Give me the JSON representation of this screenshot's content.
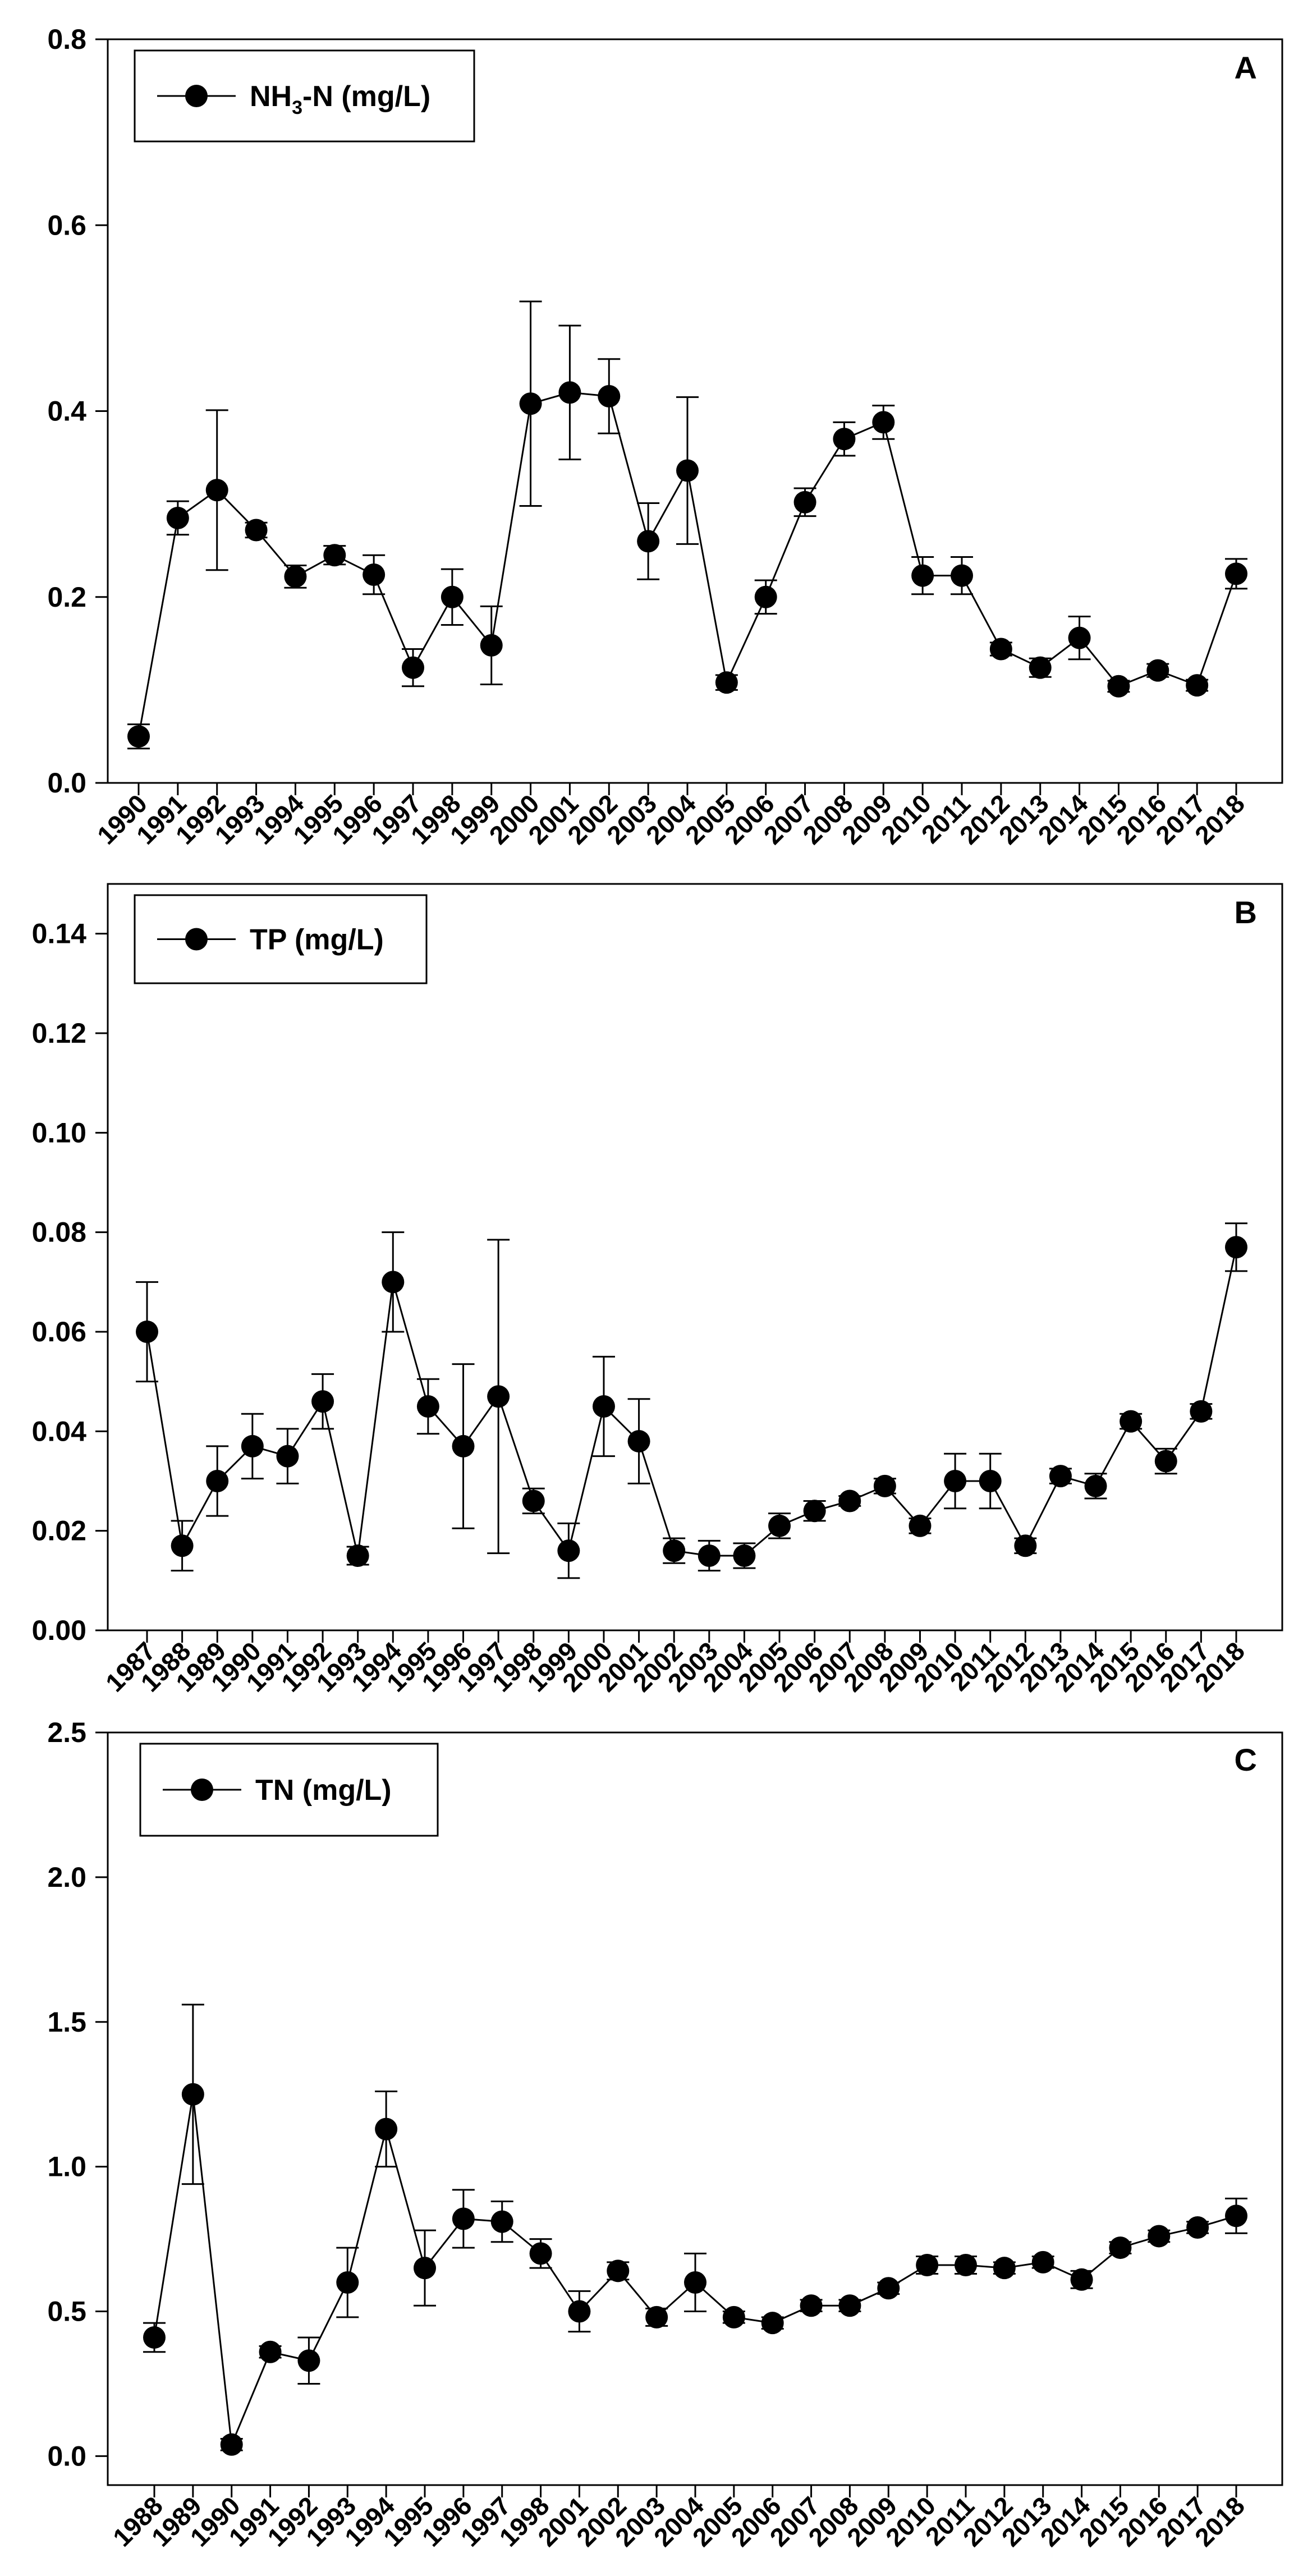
{
  "chart_data": [
    {
      "type": "line",
      "panel_label": "A",
      "legend": {
        "label": "NH",
        "sub": "3",
        "suffix": "-N (mg/L)",
        "placement": "top-left"
      },
      "ylim": [
        0,
        0.8
      ],
      "yticks": [
        0.0,
        0.2,
        0.4,
        0.6,
        0.8
      ],
      "ytick_labels": [
        "0.0",
        "0.2",
        "0.4",
        "0.6",
        "0.8"
      ],
      "categories": [
        "1990",
        "1991",
        "1992",
        "1993",
        "1994",
        "1995",
        "1996",
        "1997",
        "1998",
        "1999",
        "2000",
        "2001",
        "2002",
        "2003",
        "2004",
        "2005",
        "2006",
        "2007",
        "2008",
        "2009",
        "2010",
        "2011",
        "2012",
        "2013",
        "2014",
        "2015",
        "2016",
        "2017",
        "2018"
      ],
      "values": [
        0.05,
        0.285,
        0.315,
        0.272,
        0.222,
        0.245,
        0.224,
        0.124,
        0.2,
        0.148,
        0.408,
        0.42,
        0.416,
        0.26,
        0.336,
        0.108,
        0.2,
        0.302,
        0.37,
        0.388,
        0.223,
        0.223,
        0.144,
        0.124,
        0.156,
        0.104,
        0.121,
        0.105,
        0.225
      ],
      "errors": [
        0.013,
        0.018,
        0.086,
        0.008,
        0.012,
        0.01,
        0.021,
        0.02,
        0.03,
        0.042,
        0.11,
        0.072,
        0.04,
        0.041,
        0.079,
        0.008,
        0.018,
        0.015,
        0.018,
        0.018,
        0.02,
        0.02,
        0.007,
        0.01,
        0.023,
        0.006,
        0.007,
        0.006,
        0.016
      ],
      "xlabel": "",
      "ylabel": "",
      "grid": false
    },
    {
      "type": "line",
      "panel_label": "B",
      "legend": {
        "label": "TP (mg/L)",
        "sub": "",
        "suffix": "",
        "placement": "top-left"
      },
      "ylim": [
        0,
        0.15
      ],
      "yticks": [
        0.0,
        0.02,
        0.04,
        0.06,
        0.08,
        0.1,
        0.12,
        0.14
      ],
      "ytick_labels": [
        "0.00",
        "0.02",
        "0.04",
        "0.06",
        "0.08",
        "0.10",
        "0.12",
        "0.14"
      ],
      "categories": [
        "1987",
        "1988",
        "1989",
        "1990",
        "1991",
        "1992",
        "1993",
        "1994",
        "1995",
        "1996",
        "1997",
        "1998",
        "1999",
        "2000",
        "2001",
        "2002",
        "2003",
        "2004",
        "2005",
        "2006",
        "2007",
        "2008",
        "2009",
        "2010",
        "2011",
        "2012",
        "2013",
        "2014",
        "2015",
        "2016",
        "2017",
        "2018"
      ],
      "values": [
        0.06,
        0.017,
        0.03,
        0.037,
        0.035,
        0.046,
        0.015,
        0.07,
        0.045,
        0.037,
        0.047,
        0.026,
        0.016,
        0.045,
        0.038,
        0.016,
        0.015,
        0.015,
        0.021,
        0.024,
        0.026,
        0.029,
        0.021,
        0.03,
        0.03,
        0.017,
        0.031,
        0.029,
        0.042,
        0.034,
        0.044,
        0.077
      ],
      "errors": [
        0.01,
        0.005,
        0.007,
        0.0065,
        0.0055,
        0.0055,
        0.0018,
        0.01,
        0.0055,
        0.0165,
        0.0315,
        0.0025,
        0.0055,
        0.01,
        0.0085,
        0.0025,
        0.003,
        0.0025,
        0.0025,
        0.002,
        0.001,
        0.0015,
        0.0015,
        0.0055,
        0.0055,
        0.0015,
        0.0015,
        0.0025,
        0.0015,
        0.0025,
        0.0015,
        0.0048
      ],
      "xlabel": "",
      "ylabel": "",
      "grid": false
    },
    {
      "type": "line",
      "panel_label": "C",
      "legend": {
        "label": "TN (mg/L)",
        "sub": "",
        "suffix": "",
        "placement": "top-left"
      },
      "ylim": [
        -0.1,
        2.5
      ],
      "yticks": [
        0.0,
        0.5,
        1.0,
        1.5,
        2.0,
        2.5
      ],
      "ytick_labels": [
        "0.0",
        "0.5",
        "1.0",
        "1.5",
        "2.0",
        "2.5"
      ],
      "categories": [
        "1988",
        "1989",
        "1990",
        "1991",
        "1992",
        "1993",
        "1994",
        "1995",
        "1996",
        "1997",
        "1998",
        "2001",
        "2002",
        "2003",
        "2004",
        "2005",
        "2006",
        "2007",
        "2008",
        "2009",
        "2010",
        "2011",
        "2012",
        "2013",
        "2014",
        "2015",
        "2016",
        "2017",
        "2018"
      ],
      "values": [
        0.41,
        1.25,
        0.04,
        0.36,
        0.33,
        0.6,
        1.13,
        0.65,
        0.82,
        0.81,
        0.7,
        0.5,
        0.64,
        0.48,
        0.6,
        0.48,
        0.46,
        0.52,
        0.52,
        0.58,
        0.66,
        0.66,
        0.65,
        0.67,
        0.61,
        0.72,
        0.76,
        0.79,
        0.83
      ],
      "errors": [
        0.05,
        0.31,
        0.02,
        0.02,
        0.08,
        0.12,
        0.13,
        0.13,
        0.1,
        0.07,
        0.05,
        0.07,
        0.03,
        0.03,
        0.1,
        0.02,
        0.02,
        0.02,
        0.02,
        0.02,
        0.03,
        0.03,
        0.02,
        0.02,
        0.03,
        0.02,
        0.02,
        0.02,
        0.06
      ],
      "xlabel": "",
      "ylabel": "",
      "grid": false
    }
  ]
}
